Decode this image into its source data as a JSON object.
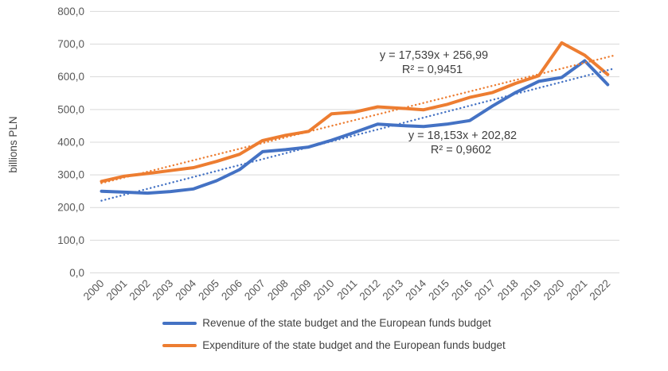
{
  "chart_data": {
    "type": "line",
    "title": "",
    "ylabel": "billions PLN",
    "xlabel": "",
    "ylim": [
      0,
      800
    ],
    "grid": true,
    "legend_position": "bottom",
    "y_ticks": [
      "0,0",
      "100,0",
      "200,0",
      "300,0",
      "400,0",
      "500,0",
      "600,0",
      "700,0",
      "800,0"
    ],
    "x": [
      "2000",
      "2001",
      "2002",
      "2003",
      "2004",
      "2005",
      "2006",
      "2007",
      "2008",
      "2009",
      "2010",
      "2011",
      "2012",
      "2013",
      "2014",
      "2015",
      "2016",
      "2017",
      "2018",
      "2019",
      "2020",
      "2021",
      "2022"
    ],
    "series": [
      {
        "name": "Revenue of the state budget and the European funds budget",
        "color": "#4472C4",
        "values": [
          250,
          247,
          244,
          249,
          257,
          282,
          316,
          371,
          377,
          385,
          406,
          430,
          455,
          451,
          448,
          455,
          466,
          511,
          552,
          586,
          598,
          649,
          576
        ]
      },
      {
        "name": "Expenditure of the state budget and the European funds budget",
        "color": "#ED7D31",
        "values": [
          280,
          296,
          304,
          313,
          322,
          341,
          363,
          405,
          421,
          433,
          487,
          492,
          508,
          504,
          499,
          515,
          537,
          552,
          580,
          603,
          704,
          666,
          607
        ]
      }
    ],
    "trendlines": [
      {
        "for_series": "Revenue of the state budget and the European funds budget",
        "equation": "y = 18,153x + 202,82",
        "r2": "R² = 0,9602",
        "slope": 18.153,
        "intercept": 202.82,
        "color": "#4472C4"
      },
      {
        "for_series": "Expenditure of the state budget and the European funds budget",
        "equation": "y = 17,539x + 256,99",
        "r2": "R² = 0,9451",
        "slope": 17.539,
        "intercept": 256.99,
        "color": "#ED7D31"
      }
    ],
    "colors": {
      "gridline": "#d9d9d9",
      "tick_text": "#595959",
      "annotation_text": "#3f3f3f",
      "legend_text": "#404040"
    }
  }
}
